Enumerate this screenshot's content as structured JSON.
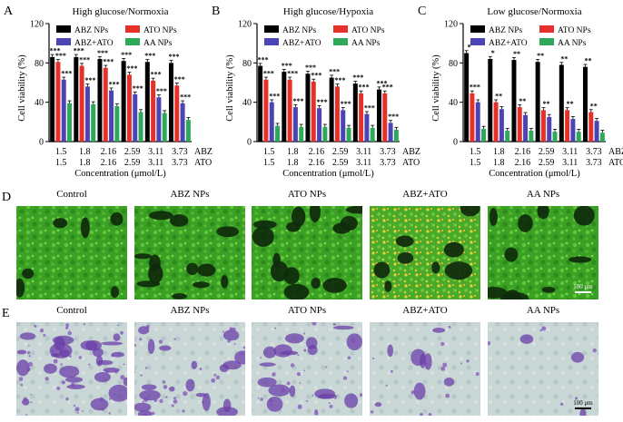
{
  "chart_data": [
    {
      "type": "bar",
      "panel": "A",
      "title": "High glucose/Normoxia",
      "ylabel": "Cell viability (%)",
      "xlabel": "Concentration (μmol/L)",
      "ylim": [
        0,
        120
      ],
      "yticks": [
        "0",
        "40",
        "80",
        "120"
      ],
      "categories_abz": [
        "1.5",
        "1.8",
        "2.16",
        "2.59",
        "3.11",
        "3.73"
      ],
      "categories_ato": [
        "1.5",
        "1.8",
        "2.16",
        "2.59",
        "3.11",
        "3.73"
      ],
      "row_label_abz": "ABZ",
      "row_label_ato": "ATO",
      "series": [
        {
          "name": "ABZ NPs",
          "color": "#000000",
          "values": [
            86,
            86,
            84,
            82,
            81,
            80
          ]
        },
        {
          "name": "ATO NPs",
          "color": "#e8302a",
          "values": [
            81,
            77,
            75,
            68,
            62,
            57
          ]
        },
        {
          "name": "ABZ+ATO",
          "color": "#4a44b4",
          "values": [
            63,
            56,
            52,
            48,
            45,
            39
          ]
        },
        {
          "name": "AA NPs",
          "color": "#2fa85a",
          "values": [
            39,
            38,
            36,
            30,
            29,
            22
          ]
        }
      ],
      "annotations": [
        [
          "***",
          "***",
          "***",
          ""
        ],
        [
          "***",
          "***",
          "***",
          ""
        ],
        [
          "***",
          "***",
          "***",
          ""
        ],
        [
          "***",
          "***",
          "***",
          ""
        ],
        [
          "***",
          "***",
          "***",
          ""
        ],
        [
          "***",
          "***",
          "***",
          ""
        ]
      ]
    },
    {
      "type": "bar",
      "panel": "B",
      "title": "High glucose/Hypoxia",
      "ylabel": "Cell viability (%)",
      "xlabel": "Concentration (μmol/L)",
      "ylim": [
        0,
        120
      ],
      "yticks": [
        "0",
        "40",
        "80",
        "120"
      ],
      "categories_abz": [
        "1.5",
        "1.8",
        "2.16",
        "2.59",
        "3.11",
        "3.73"
      ],
      "categories_ato": [
        "1.5",
        "1.8",
        "2.16",
        "2.59",
        "3.11",
        "3.73"
      ],
      "row_label_abz": "ABZ",
      "row_label_ato": "ATO",
      "series": [
        {
          "name": "ABZ NPs",
          "color": "#000000",
          "values": [
            77,
            71,
            69,
            65,
            59,
            53
          ]
        },
        {
          "name": "ATO NPs",
          "color": "#e8302a",
          "values": [
            63,
            63,
            61,
            56,
            49,
            49
          ]
        },
        {
          "name": "ABZ+ATO",
          "color": "#4a44b4",
          "values": [
            40,
            35,
            34,
            32,
            28,
            19
          ]
        },
        {
          "name": "AA NPs",
          "color": "#2fa85a",
          "values": [
            16,
            15,
            15,
            14,
            14,
            12
          ]
        }
      ],
      "annotations": [
        [
          "***",
          "***",
          "***",
          ""
        ],
        [
          "***",
          "***",
          "***",
          ""
        ],
        [
          "***",
          "***",
          "***",
          ""
        ],
        [
          "***",
          "***",
          "***",
          ""
        ],
        [
          "***",
          "***",
          "***",
          ""
        ],
        [
          "***",
          "***",
          "***",
          ""
        ]
      ]
    },
    {
      "type": "bar",
      "panel": "C",
      "title": "Low glucose/Normoxia",
      "ylabel": "Cell viability (%)",
      "xlabel": "Concentration (μmol/L)",
      "ylim": [
        0,
        120
      ],
      "yticks": [
        "0",
        "40",
        "80",
        "120"
      ],
      "categories_abz": [
        "1.5",
        "1.8",
        "2.16",
        "2.59",
        "3.11",
        "3.73"
      ],
      "categories_ato": [
        "1.5",
        "1.8",
        "2.16",
        "2.59",
        "3.11",
        "3.73"
      ],
      "row_label_abz": "ABZ",
      "row_label_ato": "ATO",
      "series": [
        {
          "name": "ABZ NPs",
          "color": "#000000",
          "values": [
            90,
            84,
            83,
            81,
            78,
            76
          ]
        },
        {
          "name": "ATO NPs",
          "color": "#e8302a",
          "values": [
            49,
            40,
            35,
            32,
            32,
            30
          ]
        },
        {
          "name": "ABZ+ATO",
          "color": "#4a44b4",
          "values": [
            40,
            33,
            27,
            25,
            23,
            21
          ]
        },
        {
          "name": "AA NPs",
          "color": "#2fa85a",
          "values": [
            13,
            11,
            11,
            10,
            10,
            9
          ]
        }
      ],
      "annotations": [
        [
          "*",
          "***",
          "",
          ""
        ],
        [
          "*",
          "**",
          "",
          ""
        ],
        [
          "**",
          "**",
          "",
          ""
        ],
        [
          "**",
          "**",
          "",
          ""
        ],
        [
          "**",
          "**",
          "",
          ""
        ],
        [
          "**",
          "**",
          "",
          ""
        ]
      ]
    }
  ],
  "micrographs": {
    "row_d": {
      "letter": "D",
      "labels": [
        "Control",
        "ABZ NPs",
        "ATO NPs",
        "ABZ+ATO",
        "AA NPs"
      ],
      "scale_bar": "100 μm"
    },
    "row_e": {
      "letter": "E",
      "labels": [
        "Control",
        "ABZ NPs",
        "ATO NPs",
        "ABZ+ATO",
        "AA NPs"
      ],
      "scale_bar": "100 μm"
    }
  }
}
